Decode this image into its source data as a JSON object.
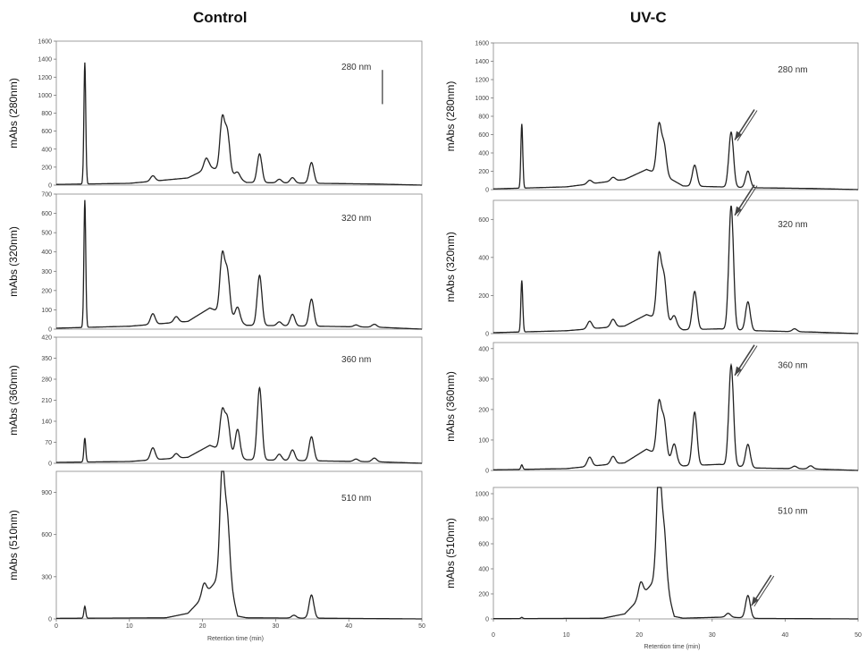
{
  "titles": {
    "left": "Control",
    "right": "UV-C"
  },
  "chart_data": [
    {
      "column": "Control",
      "type": "line",
      "x_ticks": [
        "0",
        "10",
        "20",
        "30",
        "40",
        "50"
      ],
      "xlim": [
        0,
        50
      ],
      "xlabel": "Retention time (min)",
      "panels": [
        {
          "ylabel": "mAbs (280nm)",
          "wavelength_label": "280 nm",
          "ylim": [
            0,
            1600
          ],
          "y_ticks": [
            "0",
            "200",
            "400",
            "600",
            "800",
            "1000",
            "1200",
            "1400",
            "1600"
          ],
          "peaks": [
            [
              3.9,
              1350
            ],
            [
              13.2,
              60
            ],
            [
              20.5,
              120
            ],
            [
              22.7,
              580
            ],
            [
              23.4,
              440
            ],
            [
              24.8,
              60
            ],
            [
              27.8,
              320
            ],
            [
              30.5,
              40
            ],
            [
              32.3,
              60
            ],
            [
              34.9,
              230
            ]
          ],
          "baseline": [
            [
              0,
              8
            ],
            [
              10,
              20
            ],
            [
              18,
              80
            ],
            [
              21,
              200
            ],
            [
              24,
              120
            ],
            [
              26,
              30
            ],
            [
              36,
              20
            ],
            [
              44,
              12
            ],
            [
              50,
              0
            ]
          ],
          "marker": {
            "x": 44.6,
            "y0": 1280,
            "y1": 900
          }
        },
        {
          "ylabel": "mAbs (320nm)",
          "wavelength_label": "320 nm",
          "ylim": [
            0,
            700
          ],
          "y_ticks": [
            "0",
            "100",
            "200",
            "300",
            "400",
            "500",
            "600",
            "700"
          ],
          "peaks": [
            [
              3.9,
              660
            ],
            [
              13.2,
              55
            ],
            [
              16.4,
              30
            ],
            [
              22.7,
              300
            ],
            [
              23.4,
              220
            ],
            [
              24.8,
              70
            ],
            [
              27.8,
              260
            ],
            [
              30.5,
              20
            ],
            [
              32.3,
              60
            ],
            [
              34.9,
              140
            ],
            [
              41,
              10
            ],
            [
              43.5,
              15
            ]
          ],
          "baseline": [
            [
              0,
              5
            ],
            [
              10,
              15
            ],
            [
              18,
              40
            ],
            [
              21,
              110
            ],
            [
              24,
              60
            ],
            [
              26,
              20
            ],
            [
              36,
              15
            ],
            [
              44,
              10
            ],
            [
              50,
              0
            ]
          ]
        },
        {
          "ylabel": "mAbs (360nm)",
          "wavelength_label": "360 nm",
          "ylim": [
            0,
            420
          ],
          "y_ticks": [
            "0",
            "70",
            "140",
            "210",
            "280",
            "350",
            "420"
          ],
          "peaks": [
            [
              3.9,
              80
            ],
            [
              13.2,
              40
            ],
            [
              16.4,
              15
            ],
            [
              22.7,
              130
            ],
            [
              23.4,
              110
            ],
            [
              24.8,
              90
            ],
            [
              27.8,
              240
            ],
            [
              30.5,
              20
            ],
            [
              32.3,
              35
            ],
            [
              34.9,
              80
            ],
            [
              41,
              8
            ],
            [
              43.5,
              12
            ]
          ],
          "baseline": [
            [
              0,
              3
            ],
            [
              10,
              6
            ],
            [
              18,
              20
            ],
            [
              21,
              60
            ],
            [
              24,
              30
            ],
            [
              26,
              12
            ],
            [
              36,
              8
            ],
            [
              44,
              5
            ],
            [
              50,
              0
            ]
          ]
        },
        {
          "ylabel": "mAbs (510nm)",
          "wavelength_label": "510 nm",
          "ylim": [
            0,
            1050
          ],
          "y_ticks": [
            "0",
            "300",
            "600",
            "900"
          ],
          "peaks": [
            [
              3.9,
              85
            ],
            [
              20.2,
              90
            ],
            [
              22.7,
              820
            ],
            [
              23.4,
              470
            ],
            [
              32.5,
              20
            ],
            [
              34.9,
              165
            ]
          ],
          "baseline": [
            [
              0,
              4
            ],
            [
              15,
              8
            ],
            [
              18,
              40
            ],
            [
              20,
              150
            ],
            [
              22,
              280
            ],
            [
              24,
              200
            ],
            [
              24.8,
              20
            ],
            [
              26,
              8
            ],
            [
              36,
              5
            ],
            [
              50,
              0
            ]
          ]
        }
      ]
    },
    {
      "column": "UV-C",
      "type": "line",
      "x_ticks": [
        "0",
        "10",
        "20",
        "30",
        "40",
        "50"
      ],
      "xlim": [
        0,
        50
      ],
      "xlabel": "Retention time (min)",
      "panels": [
        {
          "ylabel": "mAbs (280nm)",
          "wavelength_label": "280 nm",
          "ylim": [
            0,
            1600
          ],
          "y_ticks": [
            "0",
            "200",
            "400",
            "600",
            "800",
            "1000",
            "1200",
            "1400",
            "1600"
          ],
          "peaks": [
            [
              3.9,
              700
            ],
            [
              13.2,
              40
            ],
            [
              16.4,
              40
            ],
            [
              22.7,
              530
            ],
            [
              23.4,
              330
            ],
            [
              27.6,
              230
            ],
            [
              32.6,
              600
            ],
            [
              34.9,
              180
            ]
          ],
          "baseline": [
            [
              0,
              8
            ],
            [
              10,
              30
            ],
            [
              18,
              110
            ],
            [
              21,
              220
            ],
            [
              24,
              130
            ],
            [
              26,
              40
            ],
            [
              31,
              30
            ],
            [
              36,
              20
            ],
            [
              44,
              12
            ],
            [
              50,
              0
            ]
          ],
          "arrow": {
            "x": 32.6,
            "y": 600
          }
        },
        {
          "ylabel": "mAbs (320nm)",
          "wavelength_label": "320 nm",
          "ylim": [
            0,
            700
          ],
          "y_ticks": [
            "0",
            "200",
            "400",
            "600"
          ],
          "peaks": [
            [
              3.9,
              270
            ],
            [
              13.2,
              40
            ],
            [
              16.4,
              40
            ],
            [
              22.7,
              330
            ],
            [
              23.4,
              220
            ],
            [
              24.8,
              50
            ],
            [
              27.6,
              200
            ],
            [
              32.6,
              650
            ],
            [
              34.9,
              150
            ],
            [
              41.3,
              15
            ]
          ],
          "baseline": [
            [
              0,
              5
            ],
            [
              10,
              15
            ],
            [
              18,
              40
            ],
            [
              21,
              100
            ],
            [
              24,
              60
            ],
            [
              26,
              20
            ],
            [
              31,
              25
            ],
            [
              36,
              15
            ],
            [
              44,
              8
            ],
            [
              50,
              0
            ]
          ],
          "arrow": {
            "x": 32.6,
            "y": 650
          }
        },
        {
          "ylabel": "mAbs (360nm)",
          "wavelength_label": "360 nm",
          "ylim": [
            0,
            420
          ],
          "y_ticks": [
            "0",
            "100",
            "200",
            "300",
            "400"
          ],
          "peaks": [
            [
              3.9,
              15
            ],
            [
              13.2,
              30
            ],
            [
              16.4,
              25
            ],
            [
              22.7,
              170
            ],
            [
              23.4,
              120
            ],
            [
              24.8,
              60
            ],
            [
              27.6,
              175
            ],
            [
              32.6,
              330
            ],
            [
              34.9,
              75
            ],
            [
              41.3,
              8
            ],
            [
              43.5,
              10
            ]
          ],
          "baseline": [
            [
              0,
              2
            ],
            [
              10,
              6
            ],
            [
              18,
              25
            ],
            [
              21,
              70
            ],
            [
              24,
              35
            ],
            [
              26,
              15
            ],
            [
              31,
              20
            ],
            [
              36,
              8
            ],
            [
              44,
              5
            ],
            [
              50,
              0
            ]
          ],
          "arrow": {
            "x": 32.6,
            "y": 330
          }
        },
        {
          "ylabel": "mAbs (510nm)",
          "wavelength_label": "510 nm",
          "ylim": [
            0,
            1050
          ],
          "y_ticks": [
            "0",
            "200",
            "400",
            "600",
            "800",
            "1000"
          ],
          "peaks": [
            [
              3.9,
              10
            ],
            [
              20.2,
              120
            ],
            [
              22.7,
              950
            ],
            [
              23.4,
              450
            ],
            [
              32.2,
              30
            ],
            [
              34.9,
              180
            ]
          ],
          "baseline": [
            [
              0,
              2
            ],
            [
              15,
              5
            ],
            [
              18,
              40
            ],
            [
              20,
              160
            ],
            [
              22,
              300
            ],
            [
              24,
              200
            ],
            [
              24.8,
              20
            ],
            [
              26,
              6
            ],
            [
              32,
              15
            ],
            [
              36,
              4
            ],
            [
              50,
              0
            ]
          ],
          "arrow": {
            "x": 34.9,
            "y": 150
          }
        }
      ]
    }
  ]
}
